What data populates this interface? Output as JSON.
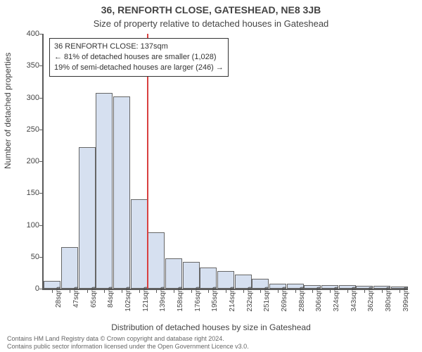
{
  "titles": {
    "main": "36, RENFORTH CLOSE, GATESHEAD, NE8 3JB",
    "sub": "Size of property relative to detached houses in Gateshead",
    "ylabel": "Number of detached properties",
    "xlabel": "Distribution of detached houses by size in Gateshead"
  },
  "footer": {
    "line1": "Contains HM Land Registry data © Crown copyright and database right 2024.",
    "line2": "Contains public sector information licensed under the Open Government Licence v3.0."
  },
  "chart": {
    "type": "histogram",
    "ylim": [
      0,
      400
    ],
    "ytick_step": 50,
    "xticks_labels": [
      "28sqm",
      "47sqm",
      "65sqm",
      "84sqm",
      "102sqm",
      "121sqm",
      "139sqm",
      "158sqm",
      "176sqm",
      "195sqm",
      "214sqm",
      "232sqm",
      "251sqm",
      "269sqm",
      "288sqm",
      "306sqm",
      "324sqm",
      "343sqm",
      "362sqm",
      "380sqm",
      "399sqm"
    ],
    "values": [
      12,
      65,
      222,
      307,
      302,
      140,
      88,
      48,
      42,
      33,
      28,
      22,
      15,
      8,
      8,
      6,
      6,
      5,
      4,
      4,
      3
    ],
    "bar_color": "#d6e0f0",
    "bar_border": "#666666",
    "axis_color": "#5a5a5a",
    "vline_index_after": 5,
    "vline_color": "#d84040",
    "infobox": {
      "line1": "36 RENFORTH CLOSE: 137sqm",
      "line2": "← 81% of detached houses are smaller (1,028)",
      "line3": "19% of semi-detached houses are larger (246) →"
    }
  }
}
